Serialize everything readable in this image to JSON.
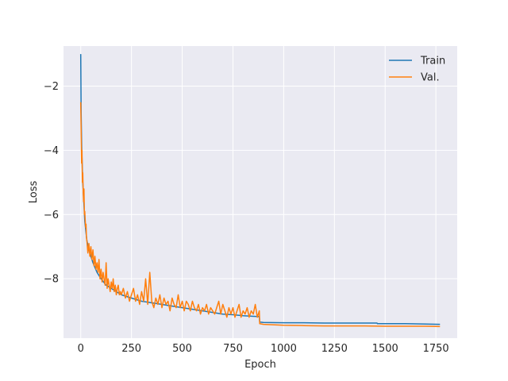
{
  "chart_data": {
    "type": "line",
    "title": "",
    "xlabel": "Epoch",
    "ylabel": "Loss",
    "xlim": [
      -85,
      1855
    ],
    "ylim": [
      -9.85,
      -0.75
    ],
    "xticks": [
      0,
      250,
      500,
      750,
      1000,
      1250,
      1500,
      1750
    ],
    "xtick_labels": [
      "0",
      "250",
      "500",
      "750",
      "1000",
      "1250",
      "1500",
      "1750"
    ],
    "yticks": [
      -8,
      -6,
      -4,
      -2
    ],
    "ytick_labels": [
      "−8",
      "−6",
      "−4",
      "−2"
    ],
    "grid": true,
    "legend_position": "top-right",
    "colors": {
      "background": "#eaeaf2",
      "grid": "#ffffff"
    },
    "series": [
      {
        "name": "Train",
        "color": "#1f77b4",
        "x": [
          0,
          2,
          5,
          10,
          15,
          20,
          30,
          40,
          50,
          60,
          80,
          100,
          125,
          150,
          175,
          200,
          250,
          300,
          350,
          400,
          450,
          500,
          550,
          600,
          650,
          700,
          750,
          800,
          850,
          880,
          882,
          900,
          1000,
          1100,
          1200,
          1300,
          1400,
          1460,
          1462,
          1500,
          1600,
          1700,
          1770
        ],
        "y": [
          -1.0,
          -2.8,
          -4.0,
          -5.0,
          -5.6,
          -6.2,
          -6.8,
          -7.1,
          -7.3,
          -7.5,
          -7.8,
          -8.0,
          -8.2,
          -8.3,
          -8.4,
          -8.5,
          -8.6,
          -8.7,
          -8.75,
          -8.8,
          -8.85,
          -8.9,
          -8.95,
          -9.0,
          -9.05,
          -9.1,
          -9.12,
          -9.15,
          -9.17,
          -9.18,
          -9.35,
          -9.36,
          -9.37,
          -9.37,
          -9.38,
          -9.38,
          -9.38,
          -9.38,
          -9.4,
          -9.4,
          -9.4,
          -9.41,
          -9.42
        ]
      },
      {
        "name": "Val.",
        "color": "#ff7f0e",
        "x": [
          0,
          2,
          4,
          6,
          8,
          10,
          12,
          14,
          16,
          18,
          20,
          22,
          24,
          26,
          28,
          30,
          35,
          40,
          45,
          50,
          55,
          60,
          65,
          70,
          75,
          80,
          85,
          90,
          95,
          100,
          105,
          110,
          115,
          120,
          125,
          130,
          135,
          140,
          145,
          150,
          155,
          160,
          165,
          170,
          175,
          180,
          185,
          190,
          195,
          200,
          210,
          220,
          230,
          240,
          250,
          260,
          270,
          280,
          290,
          300,
          310,
          320,
          330,
          340,
          350,
          360,
          370,
          380,
          390,
          400,
          410,
          420,
          430,
          440,
          450,
          460,
          470,
          480,
          490,
          500,
          510,
          520,
          530,
          540,
          550,
          560,
          570,
          580,
          590,
          600,
          610,
          620,
          630,
          640,
          650,
          660,
          670,
          680,
          690,
          700,
          710,
          720,
          730,
          740,
          750,
          760,
          770,
          780,
          790,
          800,
          810,
          820,
          830,
          840,
          850,
          860,
          870,
          880,
          882,
          900,
          1000,
          1100,
          1200,
          1300,
          1400,
          1500,
          1600,
          1700,
          1770
        ],
        "y": [
          -2.5,
          -3.3,
          -4.4,
          -4.0,
          -5.0,
          -4.7,
          -5.3,
          -5.6,
          -5.2,
          -6.0,
          -5.9,
          -6.2,
          -6.4,
          -6.3,
          -6.7,
          -6.8,
          -7.2,
          -6.9,
          -7.3,
          -7.0,
          -7.4,
          -7.1,
          -7.6,
          -7.3,
          -7.7,
          -7.5,
          -7.8,
          -7.4,
          -8.0,
          -7.7,
          -8.1,
          -7.8,
          -8.0,
          -8.2,
          -7.5,
          -8.3,
          -8.0,
          -8.2,
          -8.4,
          -8.1,
          -8.3,
          -8.0,
          -8.4,
          -8.2,
          -8.5,
          -8.3,
          -8.2,
          -8.5,
          -8.4,
          -8.5,
          -8.3,
          -8.6,
          -8.4,
          -8.7,
          -8.5,
          -8.3,
          -8.7,
          -8.5,
          -8.8,
          -8.4,
          -8.7,
          -8.0,
          -8.8,
          -7.8,
          -8.7,
          -8.9,
          -8.6,
          -8.8,
          -8.5,
          -8.9,
          -8.6,
          -8.8,
          -8.7,
          -9.0,
          -8.6,
          -8.8,
          -8.9,
          -8.5,
          -8.9,
          -8.7,
          -9.0,
          -8.7,
          -8.8,
          -9.0,
          -8.7,
          -8.9,
          -9.0,
          -8.8,
          -9.1,
          -8.9,
          -9.0,
          -8.8,
          -9.1,
          -8.9,
          -9.0,
          -9.1,
          -8.9,
          -8.7,
          -9.1,
          -8.8,
          -9.0,
          -9.2,
          -8.9,
          -9.1,
          -8.9,
          -9.2,
          -9.0,
          -8.8,
          -9.2,
          -9.0,
          -9.1,
          -8.9,
          -9.2,
          -9.0,
          -9.1,
          -8.8,
          -9.2,
          -9.0,
          -9.4,
          -9.42,
          -9.45,
          -9.46,
          -9.47,
          -9.47,
          -9.47,
          -9.48,
          -9.48,
          -9.48,
          -9.49
        ]
      }
    ]
  }
}
